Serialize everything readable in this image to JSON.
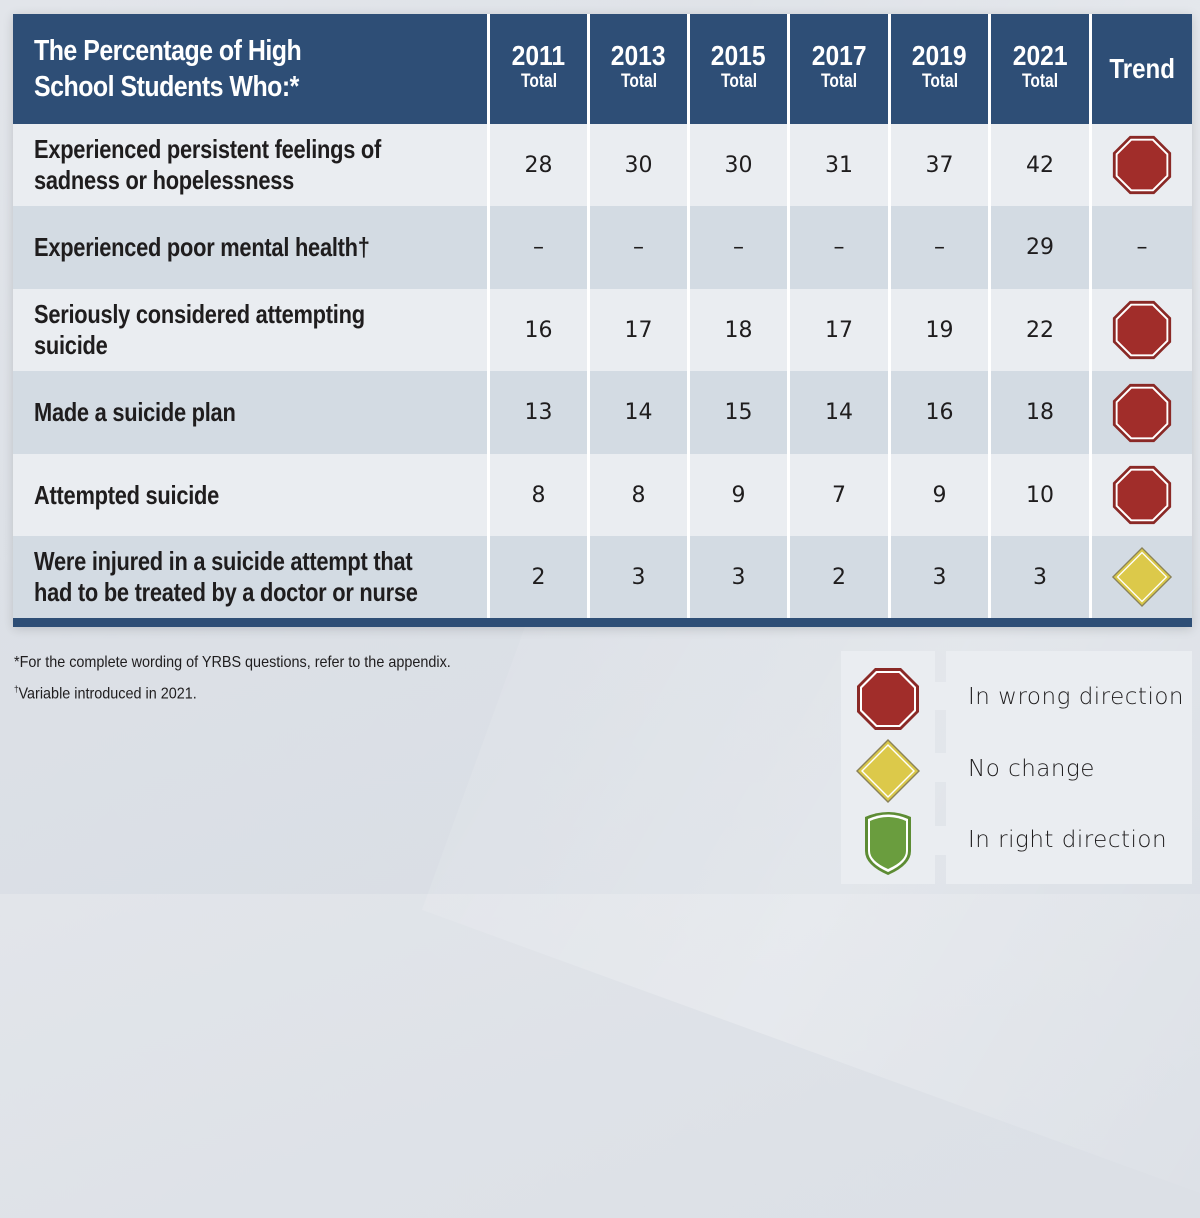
{
  "header": {
    "title_line1": "The Percentage of High",
    "title_line2": "School Students Who:*",
    "years": [
      "2011",
      "2013",
      "2015",
      "2017",
      "2019",
      "2021"
    ],
    "sub_label": "Total",
    "trend_label": "Trend"
  },
  "rows": [
    {
      "label_line1": "Experienced persistent feelings of",
      "label_line2": "sadness or hopelessness",
      "values": [
        "28",
        "30",
        "30",
        "31",
        "37",
        "42"
      ],
      "trend": "wrong",
      "trend_text": ""
    },
    {
      "label_line1": "Experienced poor mental health†",
      "label_line2": "",
      "values": [
        "–",
        "–",
        "–",
        "–",
        "–",
        "29"
      ],
      "trend": "none",
      "trend_text": "–"
    },
    {
      "label_line1": "Seriously considered attempting",
      "label_line2": "suicide",
      "values": [
        "16",
        "17",
        "18",
        "17",
        "19",
        "22"
      ],
      "trend": "wrong",
      "trend_text": ""
    },
    {
      "label_line1": "Made a suicide plan",
      "label_line2": "",
      "values": [
        "13",
        "14",
        "15",
        "14",
        "16",
        "18"
      ],
      "trend": "wrong",
      "trend_text": ""
    },
    {
      "label_line1": "Attempted suicide",
      "label_line2": "",
      "values": [
        "8",
        "8",
        "9",
        "7",
        "9",
        "10"
      ],
      "trend": "wrong",
      "trend_text": ""
    },
    {
      "label_line1": "Were injured in a suicide attempt that",
      "label_line2": "had to be treated by a doctor or nurse",
      "values": [
        "2",
        "3",
        "3",
        "2",
        "3",
        "3"
      ],
      "trend": "nochange",
      "trend_text": ""
    }
  ],
  "footnotes": {
    "note1": "*For the complete wording of YRBS questions, refer to the appendix.",
    "note2_mark": "†",
    "note2": "Variable introduced in 2021."
  },
  "legend": {
    "items": [
      {
        "icon": "stop-octagon-icon",
        "label": "In wrong direction"
      },
      {
        "icon": "yield-diamond-icon",
        "label": "No change"
      },
      {
        "icon": "shield-icon",
        "label": "In right direction"
      }
    ]
  },
  "colors": {
    "header": "#2e4e76",
    "row_light": "#eaedf1",
    "row_dark": "#d3dbe3",
    "wrong": "#a12d2a",
    "nochange": "#dcc94a",
    "right": "#6a9d3e"
  }
}
